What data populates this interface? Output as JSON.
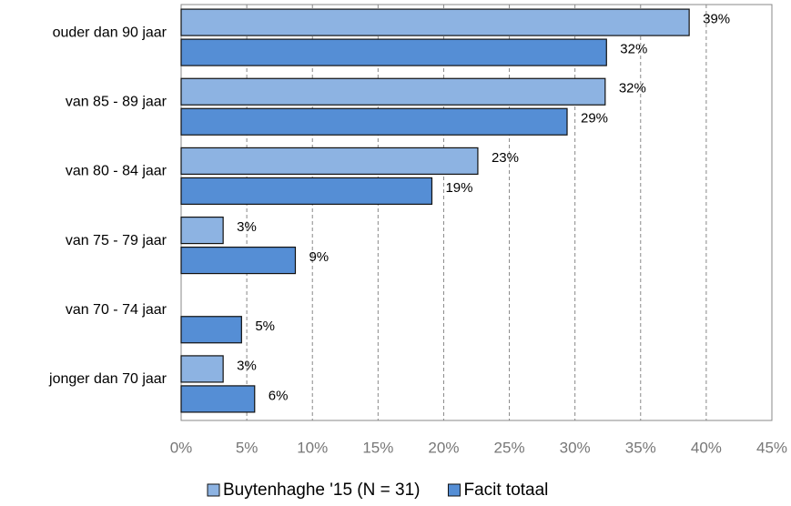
{
  "chart_data": {
    "type": "hbar",
    "categories": [
      "ouder dan 90 jaar",
      "van 85 - 89 jaar",
      "van 80 - 84 jaar",
      "van 75 - 79 jaar",
      "van 70 - 74 jaar",
      "jonger dan 70 jaar"
    ],
    "series": [
      {
        "name": "Buytenhaghe '15 (N = 31)",
        "color": "#8db3e2",
        "values": [
          38.7,
          32.3,
          22.6,
          3.2,
          null,
          3.2
        ],
        "value_labels": [
          "39%",
          "32%",
          "23%",
          "3%",
          null,
          "3%"
        ]
      },
      {
        "name": "Facit totaal",
        "color": "#558ed5",
        "values": [
          32.4,
          29.4,
          19.1,
          8.7,
          4.6,
          5.6
        ],
        "value_labels": [
          "32%",
          "29%",
          "19%",
          "9%",
          "5%",
          "6%"
        ]
      }
    ],
    "xlim": [
      0,
      45
    ],
    "xticks": [
      {
        "value": 0,
        "label": "0%"
      },
      {
        "value": 5,
        "label": "5%"
      },
      {
        "value": 10,
        "label": "10%"
      },
      {
        "value": 15,
        "label": "15%"
      },
      {
        "value": 20,
        "label": "20%"
      },
      {
        "value": 25,
        "label": "25%"
      },
      {
        "value": 30,
        "label": "30%"
      },
      {
        "value": 35,
        "label": "35%"
      },
      {
        "value": 40,
        "label": "40%"
      },
      {
        "value": 45,
        "label": "45%"
      }
    ],
    "grid": true,
    "legend": "bottom"
  }
}
